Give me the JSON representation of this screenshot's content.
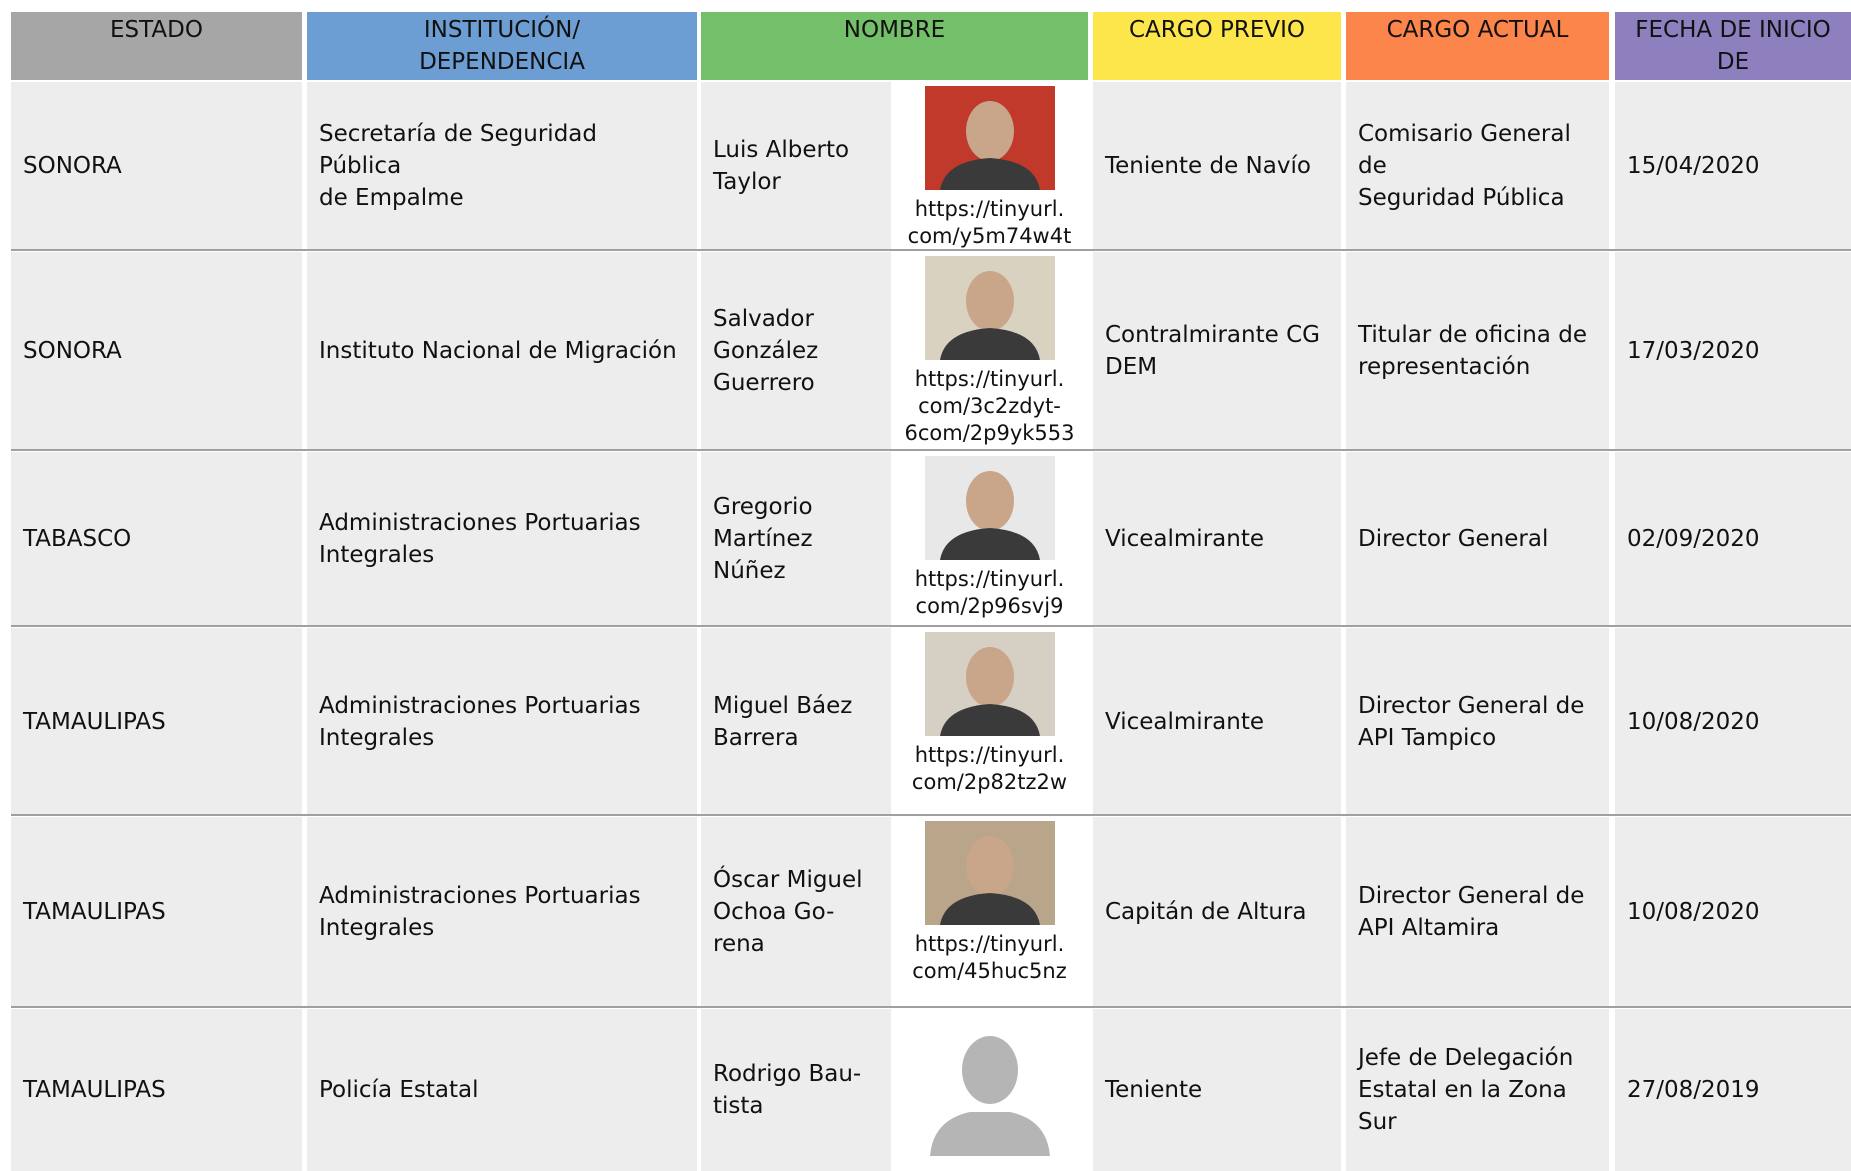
{
  "table": {
    "header": [
      "ESTADO",
      "INSTITUCIÓN/\nDEPENDENCIA",
      "NOMBRE",
      "CARGO PREVIO",
      "CARGO ACTUAL",
      "FECHA DE INICIO DE\nFUNCIONES"
    ],
    "rows": [
      {
        "estado": "SONORA",
        "institucion": "Secretaría de Seguridad Pública\nde Empalme",
        "nombre": "Luis Alberto\nTaylor",
        "url": "https://tinyurl.\ncom/y5m74w4t",
        "cargo_previo": "Teniente de Navío",
        "cargo_actual": "Comisario General de\nSeguridad Pública",
        "fecha": "15/04/2020"
      },
      {
        "estado": "SONORA",
        "institucion": "Instituto Nacional de Migración",
        "nombre": "Salvador\nGonzález\nGuerrero",
        "url": "https://tinyurl.\ncom/3c2zdyt-\n6com/2p9yk553",
        "cargo_previo": "Contralmirante CG\nDEM",
        "cargo_actual": "Titular de oficina de\nrepresentación",
        "fecha": "17/03/2020"
      },
      {
        "estado": "TABASCO",
        "institucion": "Administraciones Portuarias\nIntegrales",
        "nombre": "Gregorio\nMartínez\nNúñez",
        "url": "https://tinyurl.\ncom/2p96svj9",
        "cargo_previo": "Vicealmirante",
        "cargo_actual": "Director General",
        "fecha": "02/09/2020"
      },
      {
        "estado": "TAMAULIPAS",
        "institucion": "Administraciones Portuarias\nIntegrales",
        "nombre": "Miguel Báez\nBarrera",
        "url": "https://tinyurl.\ncom/2p82tz2w",
        "cargo_previo": "Vicealmirante",
        "cargo_actual": "Director General de\nAPI Tampico",
        "fecha": "10/08/2020"
      },
      {
        "estado": "TAMAULIPAS",
        "institucion": "Administraciones Portuarias\nIntegrales",
        "nombre": "Óscar Miguel\nOchoa Go-\nrena",
        "url": "https://tinyurl.\ncom/45huc5nz",
        "cargo_previo": "Capitán de Altura",
        "cargo_actual": "Director General de\nAPI Altamira",
        "fecha": "10/08/2020"
      },
      {
        "estado": "TAMAULIPAS",
        "institucion": "Policía Estatal",
        "nombre": "Rodrigo Bau-\ntista",
        "cargo_previo": "Teniente",
        "cargo_actual": "Jefe de Delegación\nEstatal en la Zona\nSur",
        "fecha": "27/08/2019"
      }
    ]
  }
}
